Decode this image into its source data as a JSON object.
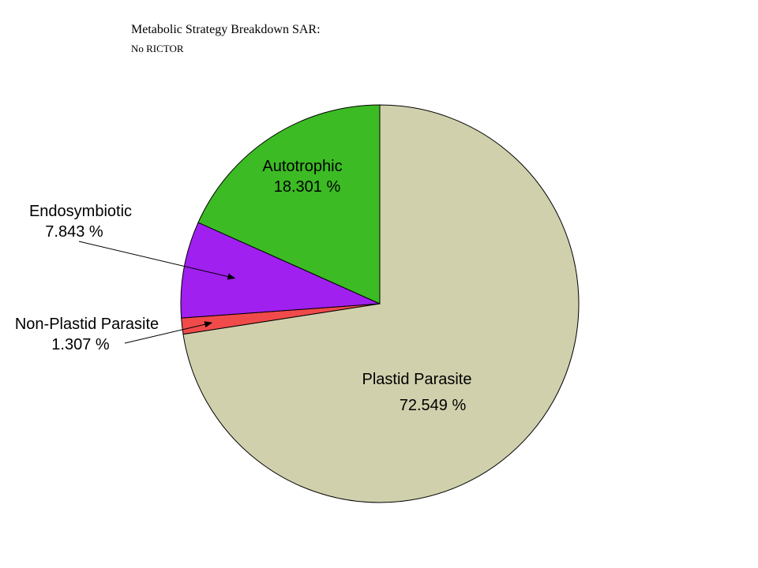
{
  "chart_data": {
    "type": "pie",
    "title": "Metabolic Strategy Breakdown SAR:",
    "subtitle": "No RICTOR",
    "slices": [
      {
        "label": "Plastid Parasite",
        "value": 72.549,
        "value_label": "72.549 %",
        "color": "#d0d0ad"
      },
      {
        "label": "Non-Plastid Parasite",
        "value": 1.307,
        "value_label": "1.307 %",
        "color": "#f04a4a"
      },
      {
        "label": "Endosymbiotic",
        "value": 7.843,
        "value_label": "7.843 %",
        "color": "#a020f0"
      },
      {
        "label": "Autotrophic",
        "value": 18.301,
        "value_label": "18.301 %",
        "color": "#3cbb24"
      }
    ]
  }
}
